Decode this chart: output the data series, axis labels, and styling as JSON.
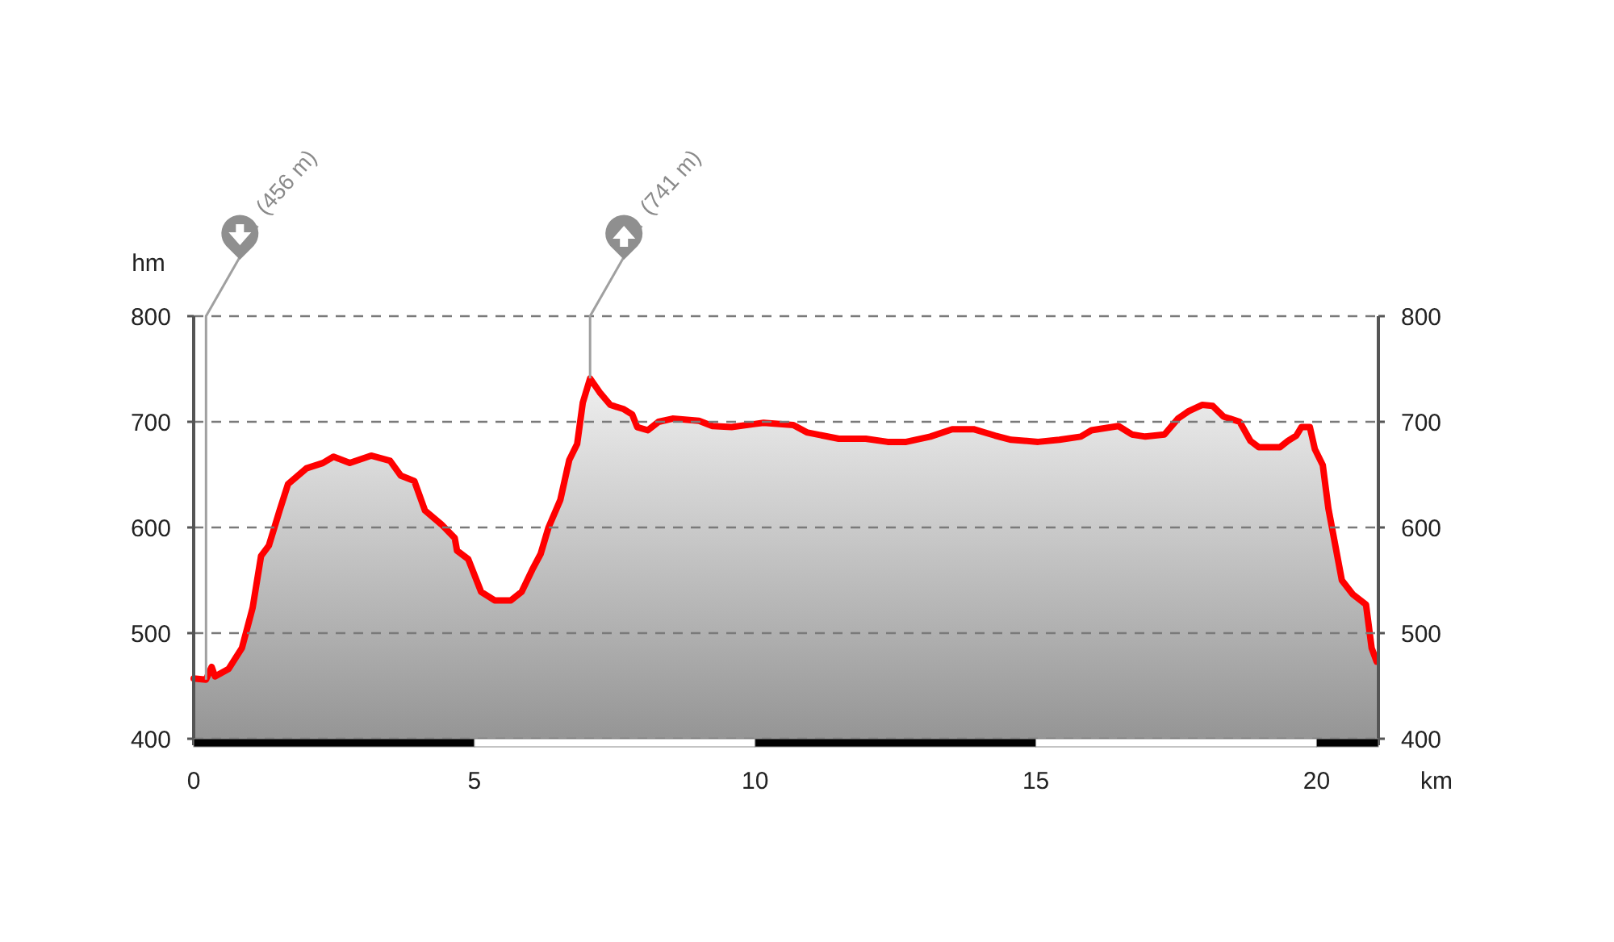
{
  "chart_data": {
    "type": "area",
    "xlabel": "km",
    "ylabel": "hm",
    "color": "#ff0000",
    "x": [
      0,
      0.22,
      0.32,
      0.38,
      0.62,
      0.86,
      1.05,
      1.2,
      1.34,
      1.53,
      1.68,
      2.01,
      2.3,
      2.49,
      2.78,
      3.16,
      3.5,
      3.69,
      3.93,
      4.12,
      4.41,
      4.65,
      4.69,
      4.89,
      5.12,
      5.36,
      5.65,
      5.84,
      6.03,
      6.18,
      6.32,
      6.53,
      6.69,
      6.83,
      6.93,
      7.06,
      7.23,
      7.42,
      7.66,
      7.81,
      7.9,
      8.09,
      8.28,
      8.53,
      9.0,
      9.24,
      9.58,
      10.0,
      10.15,
      10.68,
      10.92,
      11.49,
      11.97,
      12.36,
      12.69,
      13.12,
      13.51,
      13.89,
      14.27,
      14.56,
      15.04,
      15.42,
      15.8,
      15.99,
      16.47,
      16.71,
      16.95,
      17.29,
      17.53,
      17.72,
      17.96,
      18.15,
      18.34,
      18.63,
      18.82,
      18.97,
      19.35,
      19.49,
      19.64,
      19.73,
      19.88,
      19.97,
      20.11,
      20.21,
      20.45,
      20.64,
      20.88,
      20.98,
      21.07
    ],
    "values": [
      457,
      456,
      468,
      459,
      466,
      486,
      524,
      573,
      583,
      616,
      641,
      656,
      661,
      667,
      661,
      668,
      663,
      649,
      644,
      616,
      603,
      590,
      578,
      570,
      539,
      531,
      531,
      539,
      560,
      575,
      600,
      626,
      664,
      679,
      718,
      741,
      728,
      716,
      712,
      707,
      695,
      692,
      700,
      703,
      701,
      696,
      695,
      698,
      699,
      697,
      690,
      684,
      684,
      681,
      681,
      686,
      693,
      693,
      687,
      683,
      681,
      683,
      686,
      692,
      696,
      688,
      686,
      688,
      703,
      710,
      716,
      715,
      705,
      700,
      682,
      676,
      676,
      682,
      687,
      695,
      695,
      674,
      659,
      618,
      550,
      537,
      527,
      486,
      473
    ],
    "xlim": [
      0,
      21.1
    ],
    "xticks": [
      0,
      5,
      10,
      15,
      20
    ],
    "ylim": [
      400,
      800
    ],
    "yticks": [
      400,
      500,
      600,
      700,
      800
    ],
    "y2lim": [
      400,
      800
    ],
    "y2ticks": [
      400,
      500,
      600,
      700,
      800
    ],
    "grid": "y",
    "annotations": [
      {
        "text": "(456 m)",
        "x": 0.22,
        "y": 456
      },
      {
        "text": "(741 m)",
        "x": 7.06,
        "y": 741
      }
    ]
  }
}
